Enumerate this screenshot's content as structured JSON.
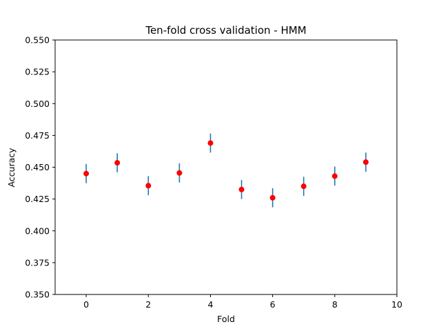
{
  "chart_data": {
    "type": "scatter",
    "title": "Ten-fold cross validation - HMM",
    "xlabel": "Fold",
    "ylabel": "Accuracy",
    "xlim": [
      -1,
      10
    ],
    "ylim": [
      0.35,
      0.55
    ],
    "xticks": [
      0,
      2,
      4,
      6,
      8,
      10
    ],
    "xtick_labels": [
      "0",
      "2",
      "4",
      "6",
      "8",
      "10"
    ],
    "yticks": [
      0.35,
      0.375,
      0.4,
      0.425,
      0.45,
      0.475,
      0.5,
      0.525,
      0.55
    ],
    "ytick_labels": [
      "0.350",
      "0.375",
      "0.400",
      "0.425",
      "0.450",
      "0.475",
      "0.500",
      "0.525",
      "0.550"
    ],
    "grid": false,
    "x": [
      0,
      1,
      2,
      3,
      4,
      5,
      6,
      7,
      8,
      9
    ],
    "y": [
      0.445,
      0.4535,
      0.4355,
      0.4455,
      0.469,
      0.4325,
      0.426,
      0.435,
      0.443,
      0.454
    ],
    "yerr": [
      0.0075,
      0.0075,
      0.0075,
      0.0075,
      0.0075,
      0.0075,
      0.0075,
      0.0075,
      0.0075,
      0.0075
    ],
    "marker_color": "#ff0000",
    "errorbar_color": "#1f77b4"
  }
}
